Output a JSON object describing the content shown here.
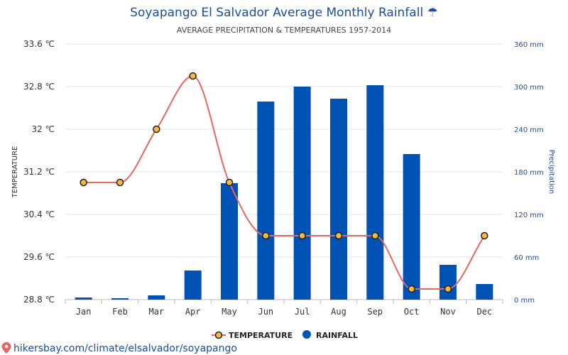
{
  "chart_data": {
    "type": "bar",
    "title": "Soyapango El Salvador Average Monthly Rainfall ☂",
    "subtitle": "AVERAGE PRECIPITATION & TEMPERATURES 1957-2014",
    "categories": [
      "Jan",
      "Feb",
      "Mar",
      "Apr",
      "May",
      "Jun",
      "Jul",
      "Aug",
      "Sep",
      "Oct",
      "Nov",
      "Dec"
    ],
    "series": [
      {
        "name": "RAINFALL",
        "type": "bar",
        "axis": "right",
        "unit": "mm",
        "color": "#0052b4",
        "values": [
          3,
          2,
          6,
          41,
          164,
          279,
          300,
          283,
          302,
          205,
          49,
          22
        ]
      },
      {
        "name": "TEMPERATURE",
        "type": "line",
        "axis": "left",
        "unit": "℃",
        "color": "#e8665f",
        "marker_fill": "#f5b940",
        "values": [
          31.0,
          31.0,
          32.0,
          33.0,
          31.0,
          30.0,
          30.0,
          30.0,
          30.0,
          29.0,
          29.0,
          30.0
        ]
      }
    ],
    "y_left": {
      "label": "TEMPERATURE",
      "ylim": [
        28.8,
        33.6
      ],
      "ticks": [
        "28.8 ℃",
        "29.6 ℃",
        "30.4 ℃",
        "31.2 ℃",
        "32 ℃",
        "32.8 ℃",
        "33.6 ℃"
      ]
    },
    "y_right": {
      "label": "Precipitation",
      "ylim": [
        0,
        360
      ],
      "ticks": [
        "0 mm",
        "60 mm",
        "120 mm",
        "180 mm",
        "240 mm",
        "300 mm",
        "360 mm"
      ]
    },
    "grid": true,
    "legend_position": "bottom-center",
    "legend": [
      "TEMPERATURE",
      "RAINFALL"
    ]
  },
  "source_text": "hikersbay.com/climate/elsalvador/soyapango"
}
